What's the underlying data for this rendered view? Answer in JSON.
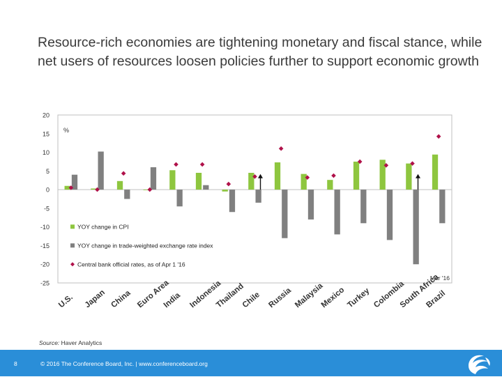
{
  "slide": {
    "title": "Resource-rich economies are tightening monetary and fiscal stance, while net users of resources loosen policies further to support economic growth",
    "source_label": "Source:",
    "source_text": "Haver Analytics",
    "page_number": "8",
    "copyright": "© 2016 The Conference Board, Inc.  |  www.conferenceboard.org",
    "logo_icon": "conference-board-globe-icon"
  },
  "colors": {
    "footer": "#2a8ed8",
    "cpi": "#8ec63f",
    "fx": "#808080",
    "rate": "#b0124a"
  },
  "chart_data": {
    "type": "bar",
    "title": "",
    "unit_label": "%",
    "xlabel": "",
    "ylabel": "",
    "ylim": [
      -25,
      20
    ],
    "yticks": [
      20,
      15,
      10,
      5,
      0,
      -5,
      -10,
      -15,
      -20,
      -25
    ],
    "grid": false,
    "legend_position": "bottom-left",
    "annotation": "Mar '16",
    "categories": [
      "U.S.",
      "Japan",
      "China",
      "Euro Area",
      "India",
      "Indonesia",
      "Thailand",
      "Chile",
      "Russia",
      "Malaysia",
      "Mexico",
      "Turkey",
      "Colombia",
      "South Africa",
      "Brazil"
    ],
    "series": [
      {
        "name": "YOY change in CPI",
        "kind": "bar",
        "values": [
          1.0,
          0.3,
          2.3,
          0.0,
          5.2,
          4.5,
          -0.5,
          4.5,
          7.3,
          4.2,
          2.6,
          7.5,
          8.0,
          7.0,
          9.4
        ]
      },
      {
        "name": "YOY change in trade-weighted exchange rate index",
        "kind": "bar",
        "values": [
          4.0,
          10.2,
          -2.5,
          6.0,
          -4.5,
          1.2,
          -6.0,
          -3.5,
          -13.0,
          -8.0,
          -12.0,
          -9.0,
          -13.5,
          -20.0,
          -9.0
        ]
      },
      {
        "name": "Central bank official rates, as of Apr 1 '16",
        "kind": "marker",
        "values": [
          0.5,
          0.0,
          4.35,
          0.0,
          6.75,
          6.75,
          1.5,
          3.5,
          11.0,
          3.25,
          3.75,
          7.5,
          6.5,
          7.0,
          14.25
        ]
      }
    ],
    "rising_arrows": [
      "Chile",
      "South Africa"
    ]
  }
}
